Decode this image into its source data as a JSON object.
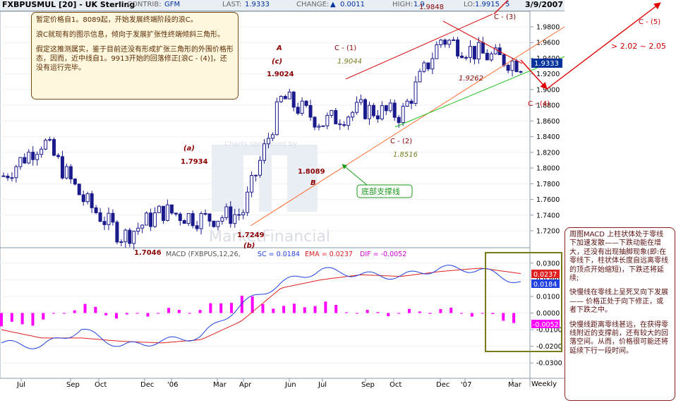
{
  "header": {
    "symbol": "FXBPUSMUL [20] - UK Sterling",
    "contrib_label": "CONTRIB:",
    "contrib_value": "GFM",
    "last_label": "LAST:",
    "last_value": "1.9333",
    "change_label": "CHANGE:",
    "change_value": "0.0011",
    "high_label": "HIGH:",
    "high_value": "1.9",
    "lo_label": "LO:",
    "lo_value": "1.9915",
    "extra_value": "5",
    "date": "3/9/2007"
  },
  "notes": {
    "left": [
      "暂定价格自1。8089起，开始发展终端阶段的浪C。",
      "浪C就现有的图示信息，倾向于发展扩张性终端倾斜三角形。",
      "假定这推测属实，鉴于目前还没有形成扩张三角形的外围价格形态，因而，近中线自1。9913开始的回落修正[浪C - (4)]，还没有运行完毕。"
    ],
    "right": [
      "周图MACD 上柱状体处于零线下加速发散——下跌动能在增大，还没有出现抽脚现象(即:在零线下，柱状体长度自远离零线的顶点开始缩短)，下跌还将延续;",
      "快慢线在零线上呈死叉向下发展—— 价格正处于向下修正，或者下跌之中。",
      "快慢线距离零线甚远，在获得零线附近的支撑前，还有较大的回落空间。从而，价格很可能还将延续下行一段时间。"
    ]
  },
  "watermark": {
    "sponsor": "Charts sponsored by",
    "brand": "MarketFinancial"
  },
  "annotations": {
    "a_label": "(a)",
    "a_value": "1.7934",
    "A_label": "A",
    "c_label": "(c)",
    "c_value": "1.9024",
    "b_label": "(b)",
    "b_value": "1.7249",
    "B_label": "B",
    "low_value": "1.7046",
    "low2_value": "1.8089",
    "c1_label": "C - (1)",
    "c1_value": "1.9044",
    "c2_label": "C - (2)",
    "c2_value": "1.8516",
    "c3_label": "C - (3)",
    "c3_value": "1.9848",
    "c4_label": "C - (4)",
    "c4_value": "1.9262",
    "c5_label": "C - (5)",
    "target": "> 2.02 ~ 2.05",
    "support_label": "底部支撑线"
  },
  "price_axis": {
    "ticks": [
      "1.9800",
      "1.9600",
      "1.9400",
      "1.9200",
      "1.9000",
      "1.8800",
      "1.8600",
      "1.8400",
      "1.8200",
      "1.8000",
      "1.7800",
      "1.7600",
      "1.7400",
      "1.7200"
    ],
    "last_tag": "1.9333"
  },
  "macd": {
    "legend_prefix": "MACD (FXBPUS,12,26,",
    "legend_sig": "SC = 0.0184",
    "legend_ema": "EMA = 0.0237",
    "legend_dif": "DIF = -0.0052",
    "ticks": [
      "0.0300",
      "0.0200",
      "0.0100",
      "0.0000",
      "-0.0100",
      "-0.0200",
      "-0.0300"
    ],
    "tag_ema": "0.0237",
    "tag_sig": "0.0184",
    "tag_dif": "-0.0052"
  },
  "x_axis": {
    "labels": [
      "Jul",
      "Sep",
      "Oct",
      "Dec",
      "'06",
      "Mar",
      "Apr",
      "Jun",
      "Jul",
      "Sep",
      "Oct",
      "Dec",
      "'07",
      "Mar"
    ],
    "periodicity": "Weekly"
  },
  "colors": {
    "candle": "#1a1a8c",
    "annotation_red": "#8b0000",
    "macd_hist": "#ff00ff",
    "ema_line": "#e02020",
    "sig_line": "#2040e0",
    "support_line": "#22b522",
    "channel_orange": "#ff6a2a"
  },
  "chart_data": [
    {
      "type": "line",
      "title": "FXBPUSMUL [20] - UK Sterling",
      "x": [
        "Jul",
        "Sep",
        "Oct",
        "Dec",
        "'06",
        "Mar",
        "Apr",
        "Jun",
        "Jul",
        "Sep",
        "Oct",
        "Dec",
        "'07",
        "Mar"
      ],
      "series": [
        {
          "values": [
            1.79,
            1.835,
            1.76,
            1.712,
            1.745,
            1.735,
            1.742,
            1.89,
            1.858,
            1.875,
            1.868,
            1.965,
            1.945,
            1.933
          ]
        }
      ],
      "xlabel": "",
      "ylabel": "",
      "ylim": [
        1.71,
        1.995
      ]
    },
    {
      "type": "line",
      "title": "MACD (FXBPUS,12,26,",
      "x": [
        "Jul",
        "Sep",
        "Oct",
        "Dec",
        "'06",
        "Mar",
        "Apr",
        "Jun",
        "Jul",
        "Sep",
        "Oct",
        "Dec",
        "'07",
        "Mar"
      ],
      "series": [
        {
          "name": "SC",
          "values": [
            -0.018,
            -0.02,
            -0.01,
            -0.02,
            -0.017,
            -0.014,
            0.005,
            0.018,
            0.026,
            0.023,
            0.022,
            0.027,
            0.026,
            0.0184
          ]
        },
        {
          "name": "EMA",
          "values": [
            -0.01,
            -0.015,
            -0.015,
            -0.017,
            -0.018,
            -0.016,
            -0.005,
            0.015,
            0.02,
            0.023,
            0.022,
            0.025,
            0.027,
            0.0237
          ]
        },
        {
          "name": "DIF",
          "values": [
            0.003,
            -0.004,
            0.0,
            -0.002,
            0.001,
            0.002,
            0.008,
            0.004,
            0.001,
            0.0,
            0.0,
            0.003,
            0.001,
            -0.0052
          ]
        }
      ],
      "xlabel": "",
      "ylabel": "",
      "ylim": [
        -0.035,
        0.035
      ]
    }
  ]
}
